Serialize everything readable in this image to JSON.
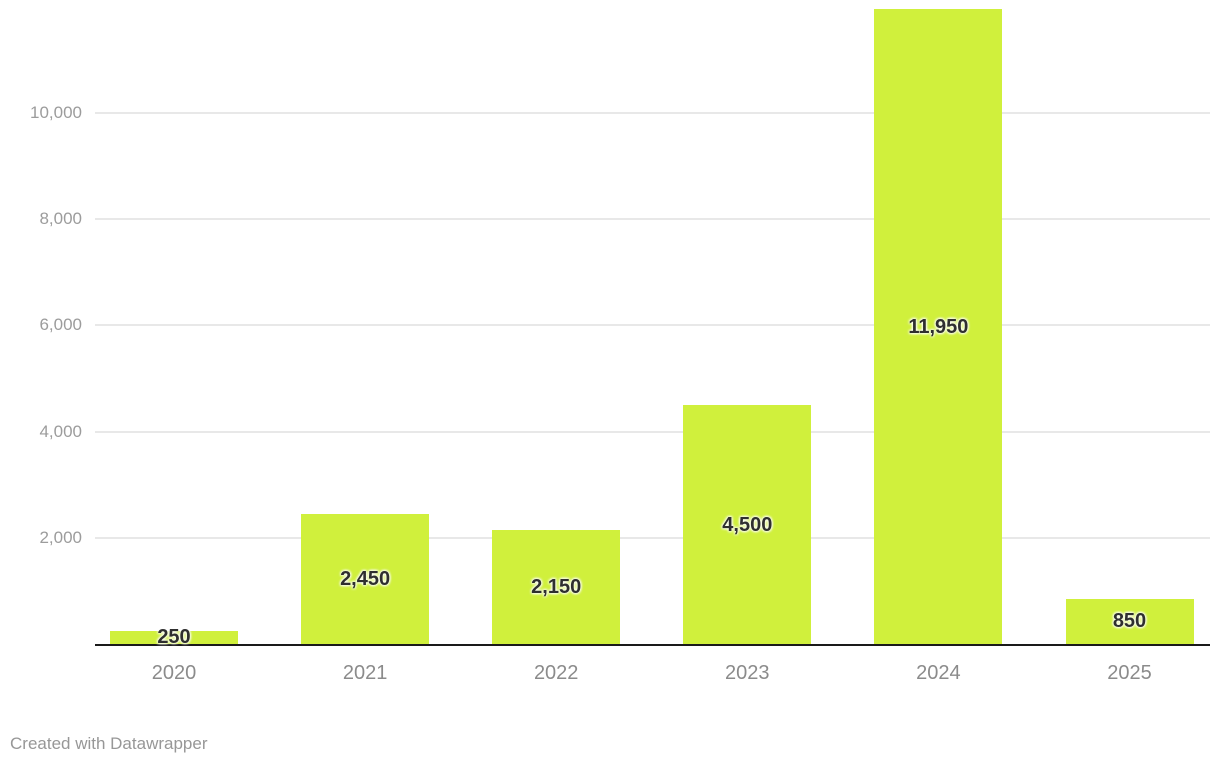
{
  "chart_data": {
    "type": "bar",
    "categories": [
      "2020",
      "2021",
      "2022",
      "2023",
      "2024",
      "2025"
    ],
    "values": [
      250,
      2450,
      2150,
      4500,
      11950,
      850
    ],
    "value_labels": [
      "250",
      "2,450",
      "2,150",
      "4,500",
      "11,950",
      "850"
    ],
    "title": "",
    "xlabel": "",
    "ylabel": "",
    "ylim": [
      0,
      12000
    ],
    "yticks": [
      {
        "value": 2000,
        "label": "2,000"
      },
      {
        "value": 4000,
        "label": "4,000"
      },
      {
        "value": 6000,
        "label": "6,000"
      },
      {
        "value": 8000,
        "label": "8,000"
      },
      {
        "value": 10000,
        "label": "10,000"
      }
    ],
    "grid": "horizontal-only",
    "legend": "none"
  },
  "colors": {
    "bar": "#d0f03c",
    "grid": "#e8e8e8",
    "axis": "#1a1a1a",
    "y_tick_label": "#9c9c9c",
    "x_tick_label": "#8b8b8b",
    "value_label": "#2f2f2f",
    "attribution": "#979797"
  },
  "footer": {
    "attribution": "Created with Datawrapper"
  }
}
